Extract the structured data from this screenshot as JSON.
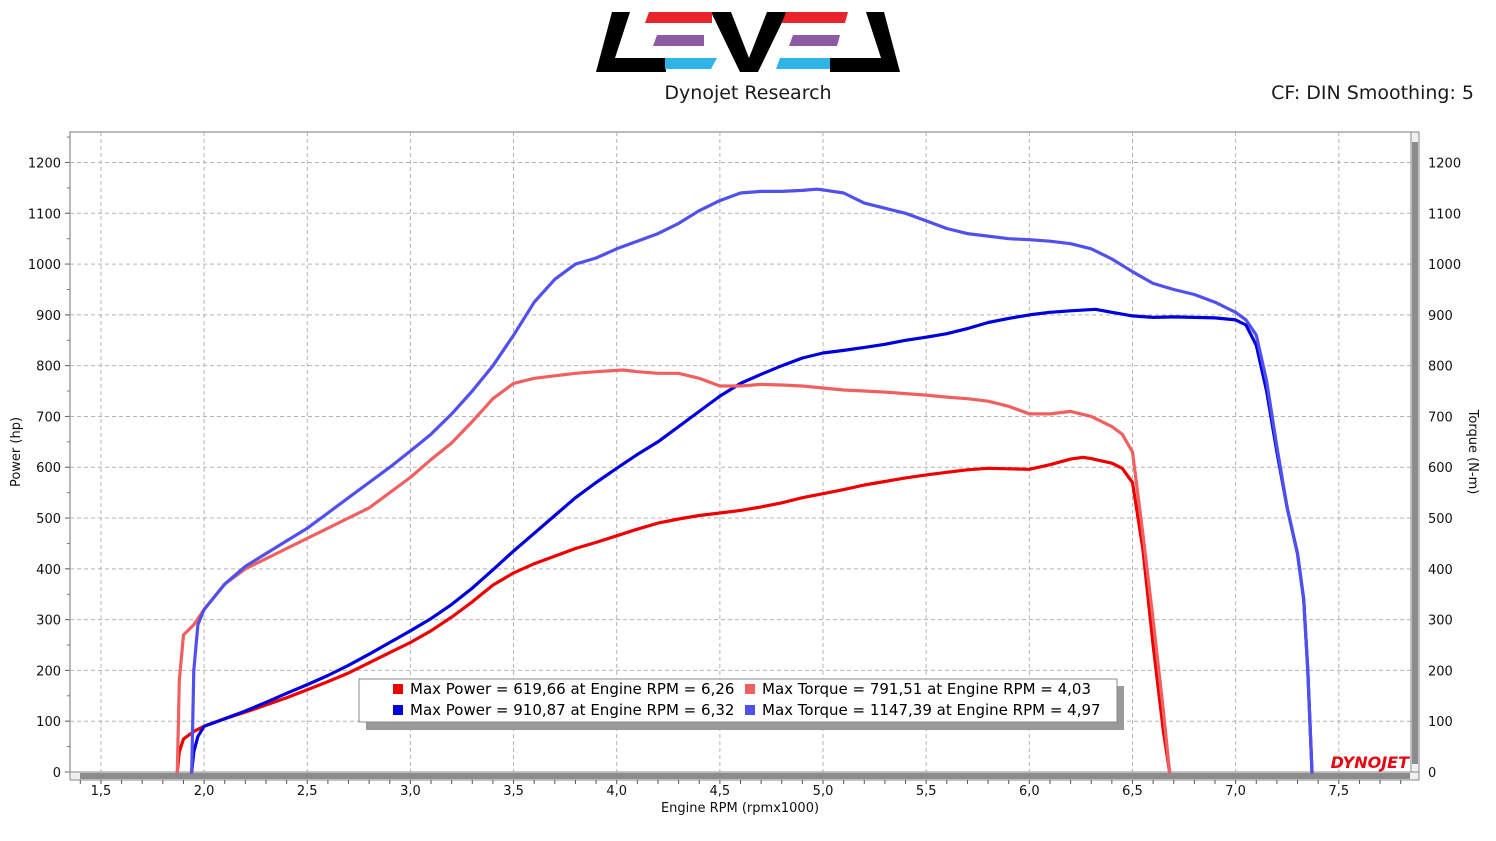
{
  "header": {
    "brand": "Dynojet Research",
    "cf_label": "CF: DIN Smoothing: 5",
    "logo_colors": [
      "#e8232b",
      "#8e5aa6",
      "#2eb4e6"
    ],
    "watermark": "DYNOJET"
  },
  "chart_data": {
    "type": "line",
    "xlabel": "Engine RPM (rpmx1000)",
    "ylabel_left": "Power (hp)",
    "ylabel_right": "Torque (N-m)",
    "xlim": [
      1.35,
      7.85
    ],
    "ylim": [
      0,
      1260
    ],
    "x_ticks": [
      1.5,
      2.0,
      2.5,
      3.0,
      3.5,
      4.0,
      4.5,
      5.0,
      5.5,
      6.0,
      6.5,
      7.0,
      7.5
    ],
    "x_tick_labels": [
      "1,5",
      "2,0",
      "2,5",
      "3,0",
      "3,5",
      "4,0",
      "4,5",
      "5,0",
      "5,5",
      "6,0",
      "6,5",
      "7,0",
      "7,5"
    ],
    "y_ticks": [
      0,
      100,
      200,
      300,
      400,
      500,
      600,
      700,
      800,
      900,
      1000,
      1100,
      1200
    ],
    "y_tick_labels": [
      "0",
      "100",
      "200",
      "300",
      "400",
      "500",
      "600",
      "700",
      "800",
      "900",
      "1000",
      "1100",
      "1200"
    ],
    "grid": true,
    "series": [
      {
        "name": "Max Power = 619,66 at Engine RPM = 6,26",
        "color": "#ee0000",
        "x": [
          1.87,
          1.88,
          1.9,
          1.95,
          2.0,
          2.1,
          2.2,
          2.3,
          2.4,
          2.5,
          2.6,
          2.7,
          2.8,
          2.9,
          3.0,
          3.1,
          3.2,
          3.3,
          3.4,
          3.5,
          3.6,
          3.7,
          3.8,
          3.9,
          4.0,
          4.1,
          4.2,
          4.3,
          4.4,
          4.5,
          4.6,
          4.7,
          4.8,
          4.9,
          5.0,
          5.1,
          5.2,
          5.3,
          5.4,
          5.5,
          5.6,
          5.7,
          5.8,
          5.9,
          6.0,
          6.1,
          6.2,
          6.26,
          6.3,
          6.4,
          6.45,
          6.5,
          6.55,
          6.6,
          6.65,
          6.68
        ],
        "values": [
          0,
          40,
          65,
          80,
          90,
          105,
          118,
          132,
          146,
          162,
          178,
          195,
          215,
          235,
          255,
          278,
          305,
          335,
          368,
          392,
          410,
          425,
          440,
          452,
          465,
          478,
          490,
          498,
          505,
          510,
          515,
          522,
          530,
          540,
          548,
          556,
          565,
          572,
          579,
          585,
          590,
          595,
          598,
          597,
          596,
          605,
          616,
          619.66,
          617,
          608,
          598,
          570,
          440,
          250,
          80,
          0
        ]
      },
      {
        "name": "Max Power = 910,87 at Engine RPM = 6,32",
        "color": "#0000dd",
        "x": [
          1.94,
          1.95,
          1.97,
          2.0,
          2.1,
          2.2,
          2.3,
          2.4,
          2.5,
          2.6,
          2.7,
          2.8,
          2.9,
          3.0,
          3.1,
          3.2,
          3.3,
          3.4,
          3.5,
          3.6,
          3.7,
          3.8,
          3.9,
          4.0,
          4.1,
          4.2,
          4.3,
          4.4,
          4.5,
          4.6,
          4.7,
          4.8,
          4.9,
          5.0,
          5.1,
          5.2,
          5.3,
          5.4,
          5.5,
          5.6,
          5.7,
          5.8,
          5.9,
          6.0,
          6.1,
          6.2,
          6.32,
          6.4,
          6.5,
          6.6,
          6.7,
          6.8,
          6.9,
          7.0,
          7.05,
          7.1,
          7.15,
          7.2,
          7.25,
          7.3,
          7.33,
          7.35,
          7.37
        ],
        "values": [
          0,
          40,
          70,
          90,
          105,
          120,
          137,
          155,
          172,
          190,
          210,
          232,
          255,
          278,
          302,
          330,
          362,
          398,
          435,
          470,
          505,
          540,
          570,
          598,
          625,
          650,
          680,
          710,
          740,
          765,
          783,
          800,
          815,
          825,
          830,
          836,
          842,
          850,
          856,
          863,
          873,
          885,
          893,
          900,
          905,
          908,
          910.87,
          905,
          898,
          895,
          896,
          895,
          894,
          890,
          880,
          840,
          750,
          630,
          520,
          430,
          340,
          200,
          0
        ]
      },
      {
        "name": "Max Torque = 791,51 at Engine RPM = 4,03",
        "color": "#f06060",
        "x": [
          1.87,
          1.88,
          1.9,
          1.95,
          2.0,
          2.1,
          2.2,
          2.3,
          2.4,
          2.5,
          2.6,
          2.7,
          2.8,
          2.9,
          3.0,
          3.1,
          3.2,
          3.3,
          3.4,
          3.5,
          3.6,
          3.7,
          3.8,
          3.9,
          4.03,
          4.1,
          4.2,
          4.3,
          4.4,
          4.5,
          4.6,
          4.7,
          4.8,
          4.9,
          5.0,
          5.1,
          5.2,
          5.3,
          5.4,
          5.5,
          5.6,
          5.7,
          5.8,
          5.9,
          6.0,
          6.1,
          6.2,
          6.3,
          6.4,
          6.45,
          6.5,
          6.55,
          6.6,
          6.65,
          6.68
        ],
        "values": [
          0,
          180,
          270,
          290,
          320,
          370,
          400,
          420,
          440,
          460,
          480,
          500,
          520,
          550,
          580,
          615,
          648,
          690,
          735,
          765,
          775,
          780,
          785,
          788,
          791.51,
          788,
          785,
          785,
          775,
          760,
          760,
          763,
          762,
          760,
          756,
          752,
          750,
          748,
          745,
          742,
          738,
          735,
          730,
          720,
          705,
          705,
          710,
          700,
          680,
          665,
          630,
          470,
          300,
          120,
          0
        ]
      },
      {
        "name": "Max Torque = 1147,39 at Engine RPM = 4,97",
        "color": "#5050ee",
        "x": [
          1.94,
          1.95,
          1.97,
          2.0,
          2.1,
          2.2,
          2.3,
          2.4,
          2.5,
          2.6,
          2.7,
          2.8,
          2.9,
          3.0,
          3.1,
          3.2,
          3.3,
          3.4,
          3.5,
          3.6,
          3.7,
          3.8,
          3.9,
          4.0,
          4.1,
          4.2,
          4.3,
          4.4,
          4.5,
          4.6,
          4.7,
          4.8,
          4.9,
          4.97,
          5.0,
          5.1,
          5.2,
          5.3,
          5.4,
          5.5,
          5.6,
          5.7,
          5.8,
          5.9,
          6.0,
          6.1,
          6.2,
          6.3,
          6.4,
          6.5,
          6.6,
          6.7,
          6.8,
          6.9,
          7.0,
          7.05,
          7.1,
          7.15,
          7.2,
          7.25,
          7.3,
          7.33,
          7.35,
          7.37
        ],
        "values": [
          0,
          200,
          290,
          320,
          370,
          405,
          430,
          455,
          480,
          510,
          540,
          570,
          600,
          632,
          665,
          705,
          750,
          800,
          860,
          925,
          970,
          1000,
          1012,
          1030,
          1045,
          1060,
          1080,
          1105,
          1125,
          1140,
          1143,
          1143,
          1145,
          1147.39,
          1146,
          1140,
          1120,
          1110,
          1100,
          1085,
          1070,
          1060,
          1055,
          1050,
          1048,
          1045,
          1040,
          1030,
          1010,
          985,
          962,
          950,
          940,
          925,
          905,
          890,
          860,
          770,
          640,
          520,
          430,
          340,
          200,
          0
        ]
      }
    ],
    "legend": {
      "placement": "bottom-center",
      "entries": [
        "Max Power = 619,66 at Engine RPM = 6,26",
        "Max Power = 910,87 at Engine RPM = 6,32",
        "Max Torque = 791,51 at Engine RPM = 4,03",
        "Max Torque = 1147,39 at Engine RPM = 4,97"
      ]
    }
  }
}
